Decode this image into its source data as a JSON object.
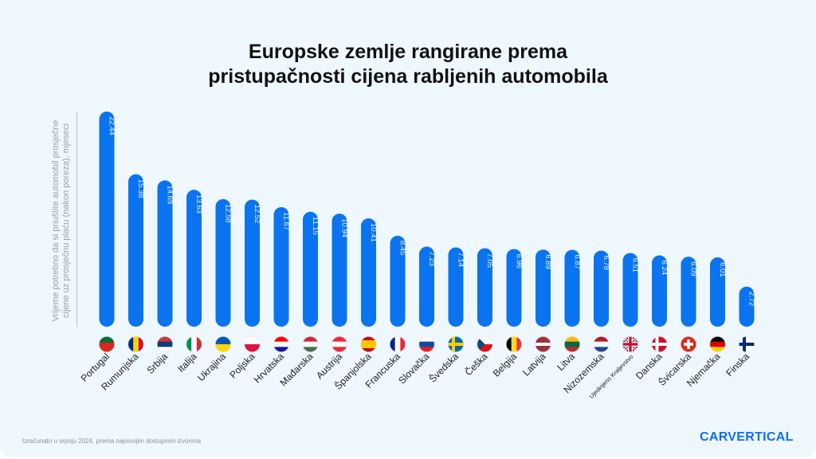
{
  "chart_data": {
    "type": "bar",
    "title": "Europske zemlje rangirane prema pristupačnosti cijena rabljenih automobila",
    "title_lines": [
      "Europske zemlje rangirane prema",
      "pristupačnosti cijena rabljenih automobila"
    ],
    "ylabel": "Vrijeme potrebno da si priuštite automobil prosječne cijene uz prosječnu plaću (nakon poreza), mjeseci",
    "categories": [
      "Portugal",
      "Rumunjska",
      "Srbija",
      "Italija",
      "Ukrajina",
      "Poljska",
      "Hrvatska",
      "Mađarska",
      "Austrija",
      "Španjolska",
      "Francuska",
      "Slovačka",
      "Švedska",
      "Češka",
      "Belgija",
      "Latvija",
      "Litva",
      "Nizozemska",
      "Ujedinjeno Kraljevstvo",
      "Danska",
      "Švicarska",
      "Njemačka",
      "Finska"
    ],
    "values": [
      22.44,
      15.38,
      14.69,
      13.63,
      12.58,
      12.52,
      11.67,
      11.15,
      10.94,
      10.41,
      8.45,
      7.23,
      7.14,
      7.05,
      6.96,
      6.89,
      6.87,
      6.78,
      6.51,
      6.24,
      6.09,
      6.01,
      2.72
    ],
    "value_labels": [
      "22.44",
      "15.38",
      "14.69",
      "13.63",
      "12.58",
      "12.52",
      "11.67",
      "11.15",
      "10.94",
      "10.41",
      "8.45",
      "7.23",
      "7.14",
      "7.05",
      "6.96",
      "6.89",
      "6.87",
      "6.78",
      "6.51",
      "6.24",
      "6.09",
      "6.01",
      "2.72"
    ],
    "bar_color": "#0a74f0",
    "flags": [
      "pt",
      "ro",
      "rs",
      "it",
      "ua",
      "pl",
      "hr",
      "hu",
      "at",
      "es",
      "fr",
      "sk",
      "se",
      "cz",
      "be",
      "lv",
      "lt",
      "nl",
      "gb",
      "dk",
      "ch",
      "de",
      "fi"
    ],
    "grid": false
  },
  "footer": {
    "note": "Izračunato u srpnju 2024. prema najnovijim dostupnim izvorima",
    "logo": "CARVERTICAL"
  }
}
